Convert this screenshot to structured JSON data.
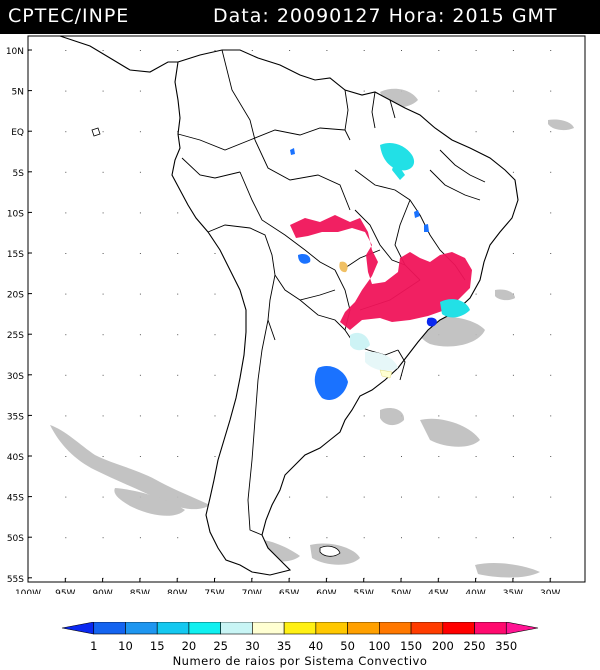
{
  "header": {
    "agency": "CPTEC/INPE",
    "date_label": "Data:",
    "date_value": "20090127",
    "time_label": "Hora:",
    "time_value": "2015 GMT"
  },
  "map": {
    "lat_ticks": [
      "10N",
      "5N",
      "EQ",
      "5S",
      "10S",
      "15S",
      "20S",
      "25S",
      "30S",
      "35S",
      "40S",
      "45S",
      "50S",
      "55S"
    ],
    "lon_ticks": [
      "100W",
      "95W",
      "90W",
      "85W",
      "80W",
      "75W",
      "70W",
      "65W",
      "60W",
      "55W",
      "50W",
      "45W",
      "40W",
      "35W",
      "30W"
    ]
  },
  "legend": {
    "caption": "Numero de raios por Sistema Convectivo",
    "ticks": [
      "1",
      "10",
      "15",
      "20",
      "25",
      "30",
      "35",
      "40",
      "50",
      "100",
      "150",
      "200",
      "250",
      "350"
    ],
    "colors": [
      "#0a28f0",
      "#1464f0",
      "#1e96f0",
      "#14c8f0",
      "#10f0f0",
      "#c8f5f5",
      "#ffffd2",
      "#fff014",
      "#ffc800",
      "#ffa000",
      "#ff7800",
      "#ff3c00",
      "#ff0000",
      "#ff0a6e",
      "#ff1493"
    ]
  },
  "colors": {
    "land_outline": "#000000",
    "cloud": "#b9b9b9",
    "magenta": "#f0145a",
    "cyan": "#22e0e6",
    "blue": "#1a72ff",
    "pale": "#cdf3f5"
  }
}
